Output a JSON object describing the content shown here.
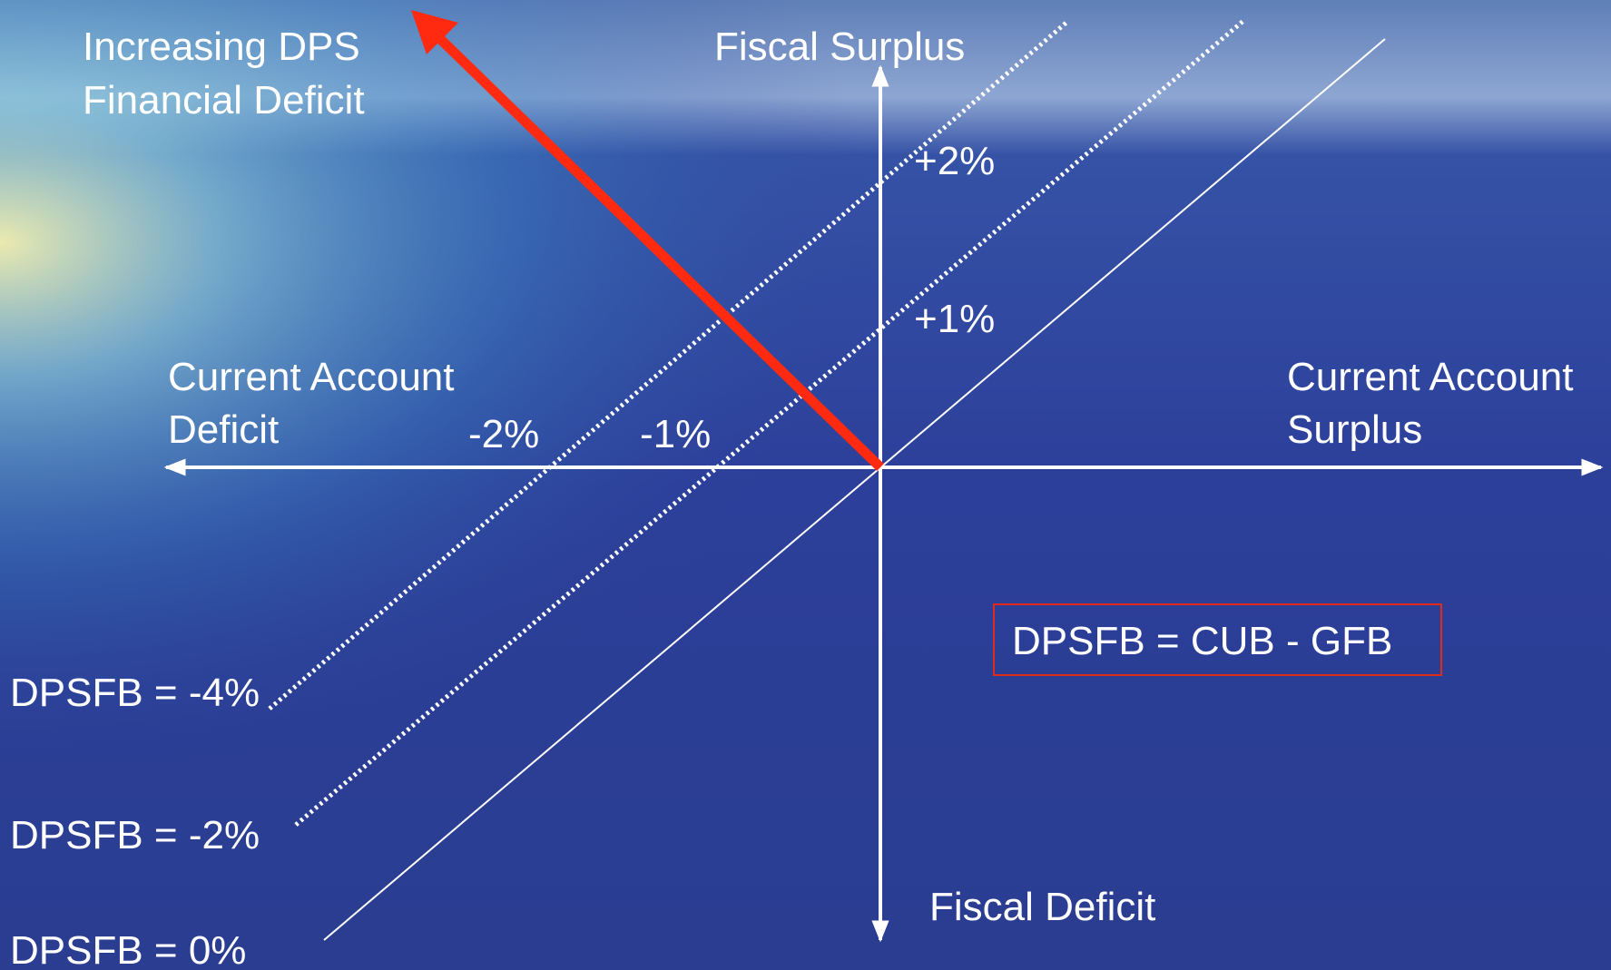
{
  "quadrants": {
    "top_left": [
      "Increasing DPS",
      "Financial Deficit"
    ],
    "top": "Fiscal Surplus",
    "bottom": "Fiscal Deficit",
    "left": [
      "Current Account",
      "Deficit"
    ],
    "right": [
      "Current Account",
      "Surplus"
    ]
  },
  "axis_labels": {
    "y_upper": "+2%",
    "y_lower": "+1%",
    "x_far": "-2%",
    "x_near": "-1%"
  },
  "lines": [
    "DPSFB = -4%",
    "DPSFB = -2%",
    "DPSFB = 0%"
  ],
  "formula": "DPSFB = CUB - GFB"
}
